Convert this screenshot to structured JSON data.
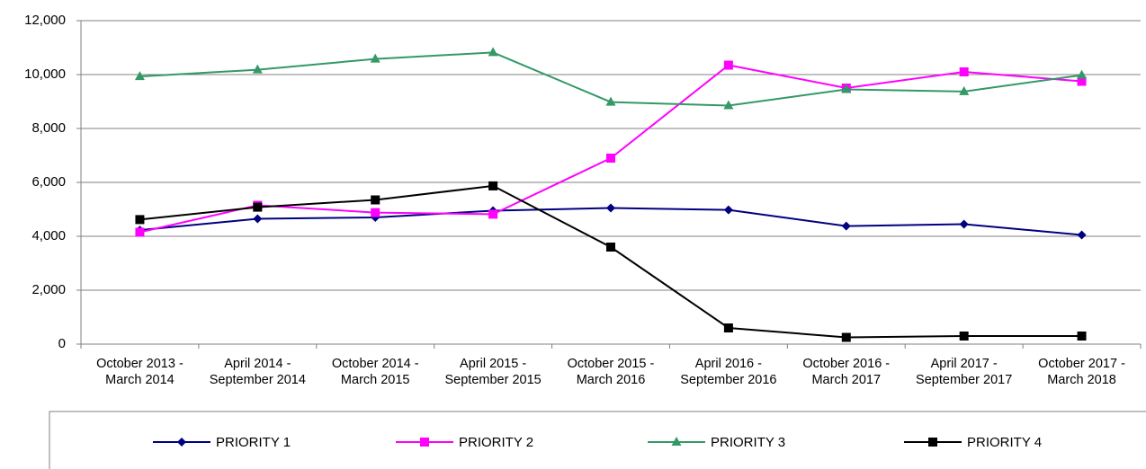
{
  "chart_data": {
    "type": "line",
    "categories": [
      "October 2013 - March 2014",
      "April 2014 - September 2014",
      "October 2014 - March 2015",
      "April 2015 - September 2015",
      "October 2015 - March 2016",
      "April 2016 - September 2016",
      "October 2016 - March 2017",
      "April 2017 - September 2017",
      "October 2017 - March 2018"
    ],
    "series": [
      {
        "name": "PRIORITY 1",
        "color": "#000080",
        "marker": "diamond",
        "values": [
          4230,
          4650,
          4700,
          4950,
          5050,
          4980,
          4380,
          4450,
          4050
        ]
      },
      {
        "name": "PRIORITY 2",
        "color": "#ff00ff",
        "marker": "square",
        "values": [
          4150,
          5150,
          4880,
          4820,
          6900,
          10350,
          9500,
          10100,
          9750
        ]
      },
      {
        "name": "PRIORITY 3",
        "color": "#339966",
        "marker": "triangle",
        "values": [
          9930,
          10180,
          10580,
          10820,
          8980,
          8850,
          9450,
          9370,
          9980
        ]
      },
      {
        "name": "PRIORITY 4",
        "color": "#000000",
        "marker": "square",
        "values": [
          4620,
          5080,
          5350,
          5870,
          3600,
          600,
          250,
          300,
          300
        ]
      }
    ],
    "ylim": [
      0,
      12000
    ],
    "yticks": [
      0,
      {
        "value": 2000,
        "label": "2,000"
      },
      {
        "value": 4000,
        "label": "4,000"
      },
      {
        "value": 6000,
        "label": "6,000"
      },
      {
        "value": 8000,
        "label": "8,000"
      },
      {
        "value": 10000,
        "label": "10,000"
      },
      {
        "value": 12000,
        "label": "12,000"
      }
    ],
    "grid": true,
    "legend": "bottom"
  }
}
